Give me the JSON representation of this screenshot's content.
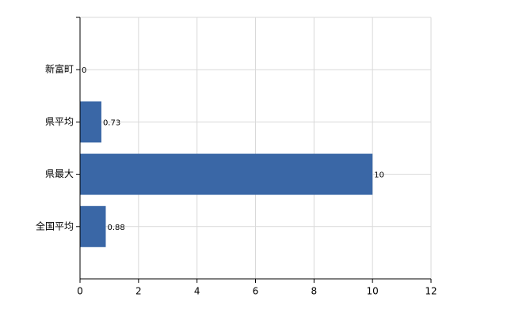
{
  "chart_data": {
    "type": "bar",
    "orientation": "horizontal",
    "categories": [
      "新富町",
      "県平均",
      "県最大",
      "全国平均"
    ],
    "values": [
      0,
      0.73,
      10,
      0.88
    ],
    "color": "#3a67a6",
    "xlim": [
      0,
      12
    ],
    "xticks": [
      0,
      2,
      4,
      6,
      8,
      10,
      12
    ],
    "grid": true
  }
}
